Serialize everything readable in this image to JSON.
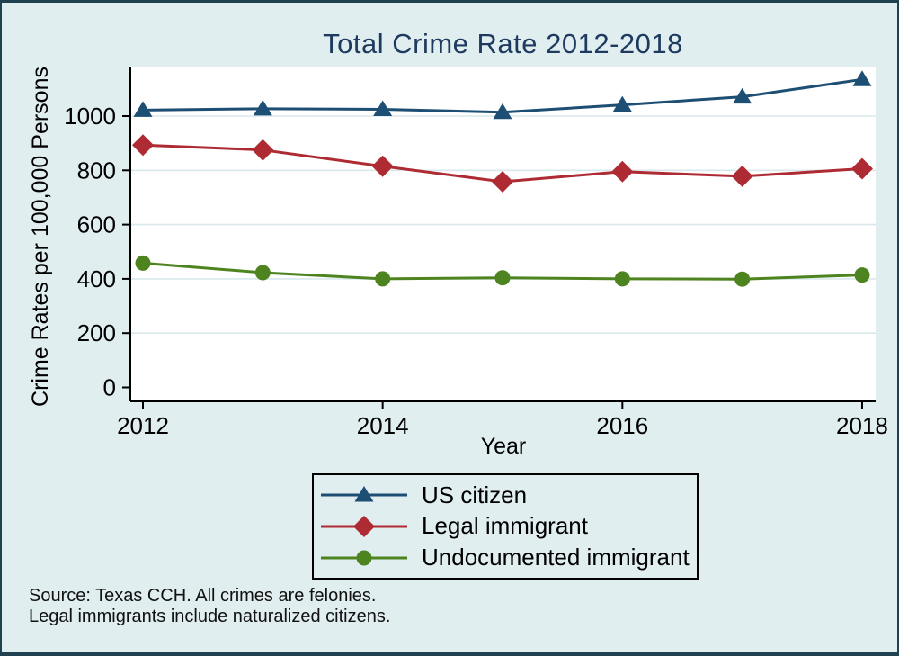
{
  "chart_data": {
    "type": "line",
    "title": "Total Crime Rate 2012-2018",
    "xlabel": "Year",
    "ylabel": "Crime Rates per 100,000 Persons",
    "x": [
      2012,
      2013,
      2014,
      2015,
      2016,
      2017,
      2018
    ],
    "x_ticks": [
      2012,
      2014,
      2016,
      2018
    ],
    "y_ticks": [
      0,
      200,
      400,
      600,
      800,
      1000
    ],
    "ylim": [
      0,
      1180
    ],
    "grid": true,
    "legend_position": "bottom",
    "series": [
      {
        "name": "US citizen",
        "marker": "triangle",
        "color": "#1d4e74",
        "values": [
          1022,
          1027,
          1025,
          1014,
          1041,
          1071,
          1135
        ]
      },
      {
        "name": "Legal immigrant",
        "marker": "diamond",
        "color": "#ae2b33",
        "values": [
          893,
          875,
          815,
          758,
          795,
          778,
          806
        ]
      },
      {
        "name": "Undocumented immigrant",
        "marker": "circle",
        "color": "#4e8420",
        "values": [
          458,
          423,
          400,
          404,
          400,
          399,
          414
        ]
      }
    ]
  },
  "notes": {
    "line1": "Source: Texas CCH. All crimes are felonies.",
    "line2": "Legal immigrants include naturalized citizens."
  },
  "colors": {
    "background": "#e1eef0",
    "plot_background": "#ffffff",
    "frame_border": "#20414f",
    "title_text": "#1e3a5f",
    "grid_line": "#d9e8eb",
    "axis_line": "#000000"
  }
}
